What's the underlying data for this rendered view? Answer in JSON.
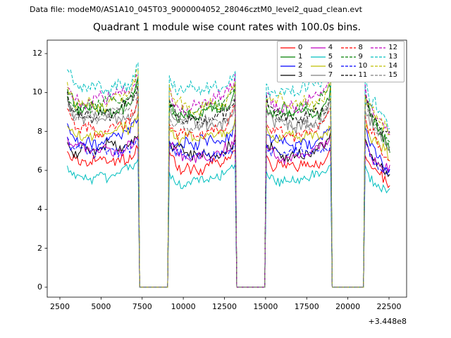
{
  "header": {
    "datafile": "Data file: modeM0/AS1A10_045T03_9000004052_28046cztM0_level2_quad_clean.evt"
  },
  "chart_data": {
    "type": "line",
    "title": "Quadrant 1 module wise count rates with 100.0s bins.",
    "ylabel": "",
    "xlabel": "",
    "x_offset_text": "+3.448e8",
    "x_absolute_offset": 344800000,
    "bin_seconds": 100,
    "xlim": [
      1730,
      23570
    ],
    "ylim": [
      -0.51,
      12.69
    ],
    "xticks": [
      2500,
      5000,
      7500,
      10000,
      12500,
      15000,
      17500,
      20000,
      22500
    ],
    "yticks": [
      0,
      2,
      4,
      6,
      8,
      10,
      12
    ],
    "grid": false,
    "legend": {
      "loc": "upper right",
      "ncol": 4,
      "order": "column-major"
    },
    "segments_on": [
      [
        2950,
        7250
      ],
      [
        9130,
        13160
      ],
      [
        14960,
        18970
      ],
      [
        20990,
        22620
      ]
    ],
    "gaps_zero": [
      [
        7250,
        9130
      ],
      [
        13160,
        14960
      ],
      [
        18970,
        20990
      ]
    ],
    "gap_value": 0,
    "series": [
      {
        "label": "0",
        "color": "#ff0000",
        "linestyle": "solid",
        "levels": [
          6.45,
          6.2,
          6.25,
          6.5
        ]
      },
      {
        "label": "1",
        "color": "#007f00",
        "linestyle": "solid",
        "levels": [
          9.15,
          8.9,
          8.95,
          9.2
        ]
      },
      {
        "label": "2",
        "color": "#0000ff",
        "linestyle": "solid",
        "levels": [
          7.6,
          7.35,
          7.4,
          7.65
        ]
      },
      {
        "label": "3",
        "color": "#000000",
        "linestyle": "solid",
        "levels": [
          7.1,
          6.85,
          6.9,
          7.15
        ]
      },
      {
        "label": "4",
        "color": "#bf00bf",
        "linestyle": "solid",
        "levels": [
          7.05,
          6.8,
          6.85,
          7.1
        ]
      },
      {
        "label": "5",
        "color": "#00bfbf",
        "linestyle": "solid",
        "levels": [
          5.75,
          5.5,
          5.55,
          5.8
        ]
      },
      {
        "label": "6",
        "color": "#bfbf00",
        "linestyle": "solid",
        "levels": [
          7.85,
          7.6,
          7.65,
          7.9
        ]
      },
      {
        "label": "7",
        "color": "#7f7f7f",
        "linestyle": "solid",
        "levels": [
          8.6,
          8.35,
          8.4,
          8.6
        ]
      },
      {
        "label": "8",
        "color": "#ff0000",
        "linestyle": "dashed",
        "levels": [
          8.25,
          8.0,
          8.05,
          8.25
        ]
      },
      {
        "label": "9",
        "color": "#007f00",
        "linestyle": "dashed",
        "levels": [
          9.3,
          9.05,
          9.1,
          9.3
        ]
      },
      {
        "label": "10",
        "color": "#0000ff",
        "linestyle": "dashed",
        "levels": [
          6.95,
          6.7,
          6.75,
          6.95
        ]
      },
      {
        "label": "11",
        "color": "#000000",
        "linestyle": "dashed",
        "levels": [
          9.05,
          8.8,
          8.85,
          9.05
        ]
      },
      {
        "label": "12",
        "color": "#bf00bf",
        "linestyle": "dashed",
        "levels": [
          9.65,
          9.4,
          9.45,
          9.6
        ]
      },
      {
        "label": "13",
        "color": "#00bfbf",
        "linestyle": "dashed",
        "levels": [
          10.25,
          10.0,
          10.05,
          10.25
        ]
      },
      {
        "label": "14",
        "color": "#bfbf00",
        "linestyle": "dashed",
        "levels": [
          9.6,
          9.35,
          9.4,
          9.55
        ]
      },
      {
        "label": "15",
        "color": "#7f7f7f",
        "linestyle": "dashed",
        "levels": [
          8.75,
          8.5,
          8.55,
          8.75
        ]
      }
    ],
    "noise_amp": 0.2,
    "edge_spike_frac": 0.085,
    "last_segment_decline_frac": 0.19
  }
}
